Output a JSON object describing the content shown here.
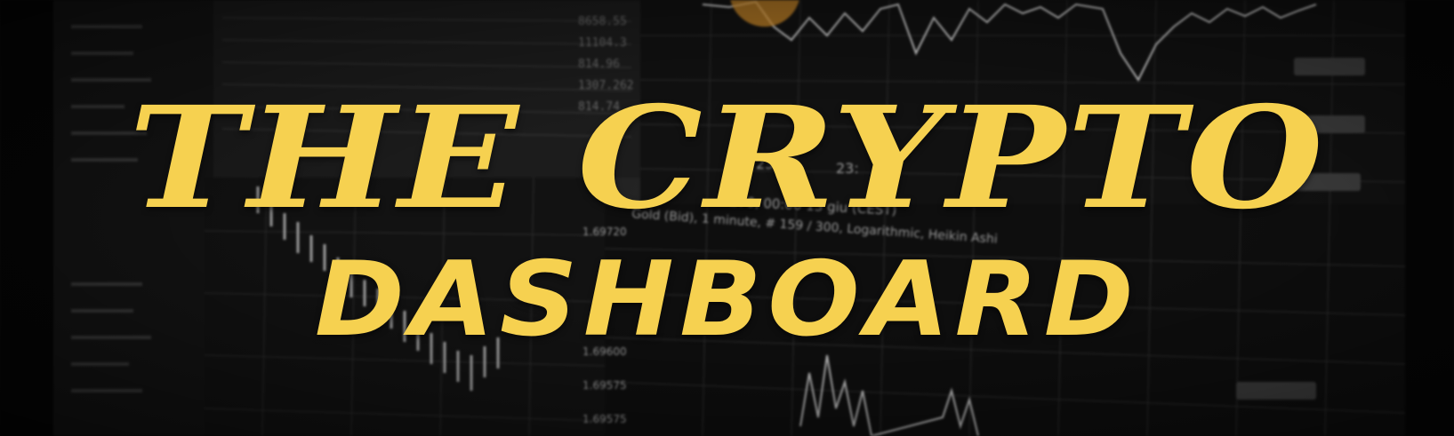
{
  "banner": {
    "title_line1": "THE CRYPTO",
    "title_line2": "DASHBOARD",
    "accent_color": "#f6d150"
  },
  "background": {
    "chart_time_label_1": "23:40",
    "chart_time_label_2": "23:",
    "chart_header": "276,  00:00  13 giu (CEST)",
    "chart_info": "Gold (Bid), 1 minute, # 159 / 300, Logarithmic, Heikin Ashi",
    "price_labels": [
      "1.69720",
      "1.69600",
      "1.69575",
      "1.69575"
    ],
    "table_values": [
      "8658.55",
      "11104.3",
      "814.96",
      "1307.262",
      "814.74"
    ]
  }
}
